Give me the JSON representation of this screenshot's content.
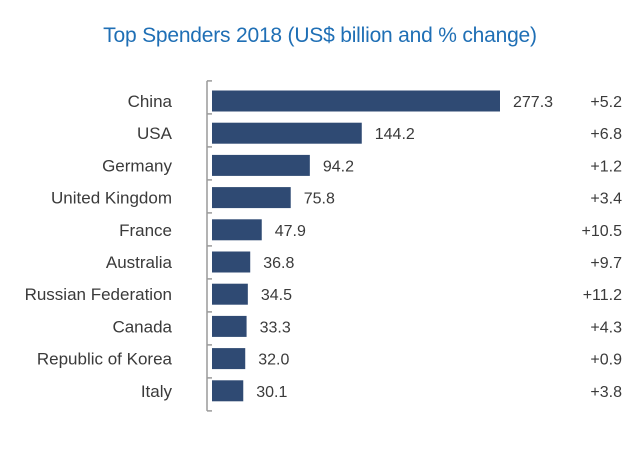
{
  "chart_data": {
    "type": "bar",
    "orientation": "horizontal",
    "title": "Top Spenders 2018 (US$ billion and % change)",
    "categories": [
      "China",
      "USA",
      "Germany",
      "United Kingdom",
      "France",
      "Australia",
      "Russian Federation",
      "Canada",
      "Republic of Korea",
      "Italy"
    ],
    "values": [
      277.3,
      144.2,
      94.2,
      75.8,
      47.9,
      36.8,
      34.5,
      33.3,
      32.0,
      30.1
    ],
    "value_labels": [
      "277.3",
      "144.2",
      "94.2",
      "75.8",
      "47.9",
      "36.8",
      "34.5",
      "33.3",
      "32.0",
      "30.1"
    ],
    "change_labels": [
      "+5.2",
      "+6.8",
      "+1.2",
      "+3.4",
      "+10.5",
      "+9.7",
      "+11.2",
      "+4.3",
      "+0.9",
      "+3.8"
    ],
    "xlim": [
      0,
      277.3
    ],
    "grid": false,
    "colors": {
      "bar": "#2f4a73",
      "title": "#1f6fb5",
      "axis": "#9a9a9a"
    }
  }
}
